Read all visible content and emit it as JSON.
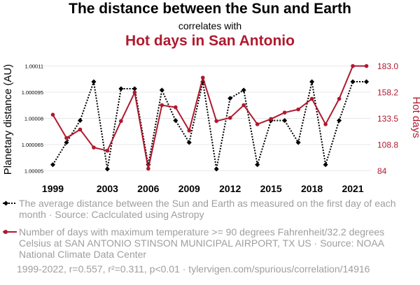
{
  "header": {
    "title": "The distance between the Sun and Earth",
    "subtitle": "correlates with",
    "title2": "Hot days in San Antonio"
  },
  "legend": {
    "series1": "The average distance between the Sun and Earth as measured on the first day of each month · Source: Caclculated using Astropy",
    "series2": "Number of days with maximum temperature >= 90 degrees Fahrenheit/32.2 degrees Celsius at SAN ANTONIO STINSON MUNICIPAL AIRPORT, TX US · Source: NOAA National Climate Data Center"
  },
  "footer": "1999-2022, r=0.557, r²=0.311, p<0.01 · tylervigen.com/spurious/correlation/14916",
  "chart_data": {
    "type": "line",
    "x": [
      1999,
      2000,
      2001,
      2002,
      2003,
      2004,
      2005,
      2006,
      2007,
      2008,
      2009,
      2010,
      2011,
      2012,
      2013,
      2014,
      2015,
      2016,
      2017,
      2018,
      2019,
      2020,
      2021,
      2022
    ],
    "xticks": [
      "1999",
      "2003",
      "2006",
      "2009",
      "2012",
      "2015",
      "2018",
      "2021"
    ],
    "series": [
      {
        "name": "The average distance between the Sun and Earth",
        "axis": "left",
        "color": "#000000",
        "style": "dotted",
        "values": [
          1.0000535,
          1.0000662,
          1.0000788,
          1.000101,
          1.000051,
          1.000097,
          1.000097,
          1.0000535,
          1.0000962,
          1.0000788,
          1.0000662,
          1.000101,
          1.000051,
          1.0000915,
          1.0000962,
          1.0000535,
          1.0000788,
          1.0000788,
          1.0000662,
          1.000101,
          1.0000535,
          1.0000788,
          1.000101,
          1.000101
        ]
      },
      {
        "name": "Hot days in San Antonio",
        "axis": "right",
        "color": "#b0192e",
        "style": "solid",
        "values": [
          137,
          115,
          123,
          106,
          103,
          131,
          158,
          86,
          146,
          144,
          122,
          172,
          131,
          134,
          146,
          128,
          133,
          139,
          142,
          152,
          128,
          152,
          183,
          183
        ]
      }
    ],
    "ylabel_left": "Planetary distance (AU)",
    "ylabel_right": "Hot days",
    "yticks_left": [
      "1.00005",
      "1.000065",
      "1.00008",
      "1.000095",
      "1.00011"
    ],
    "yticks_right": [
      "84",
      "108.8",
      "133.5",
      "158.2",
      "183.0"
    ],
    "ylim_left": [
      1.00005,
      1.00011
    ],
    "ylim_right": [
      84,
      183
    ]
  }
}
